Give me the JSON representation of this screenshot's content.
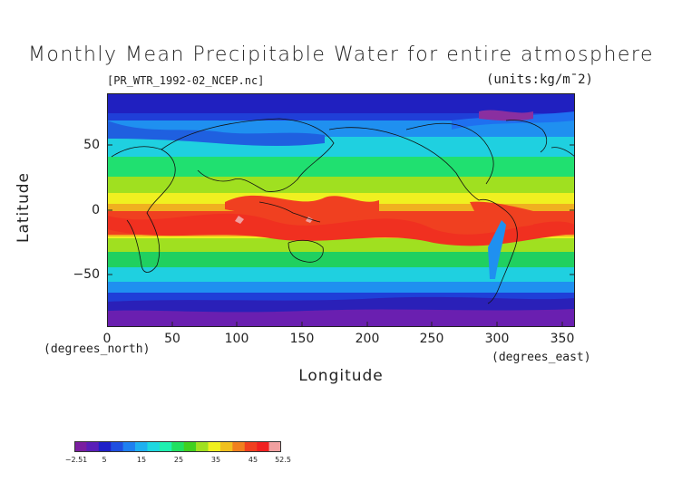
{
  "title": "Monthly Mean Precipitable Water for entire atmosphere",
  "subtitle": "[PR_WTR_1992-02_NCEP.nc]",
  "units": "(units:kg/m¯2)",
  "axes": {
    "ylabel": "Latitude",
    "xlabel": "Longitude",
    "y_ticks": [
      "50",
      "0",
      "−50"
    ],
    "x_ticks": [
      "0",
      "50",
      "100",
      "150",
      "200",
      "250",
      "300",
      "350"
    ],
    "y_unit": "(degrees_north)",
    "x_unit": "(degrees_east)"
  },
  "colorbar": {
    "tick_labels": [
      "−2.51",
      "5",
      "15",
      "25",
      "35",
      "45",
      "52.5"
    ],
    "colors": [
      "#7a1fa0",
      "#5a1fb8",
      "#2020c8",
      "#1f4fe0",
      "#1f80f0",
      "#1fb0f0",
      "#1fd8e0",
      "#1ff0b0",
      "#20e060",
      "#40d020",
      "#a0e020",
      "#f0f020",
      "#f0c020",
      "#f08020",
      "#f04020",
      "#f02020",
      "#f0a0a0"
    ]
  },
  "chart_data": {
    "type": "heatmap",
    "title": "Monthly Mean Precipitable Water for entire atmosphere",
    "xlabel": "Longitude",
    "ylabel": "Latitude",
    "xlim": [
      0,
      360
    ],
    "ylim": [
      -90,
      90
    ],
    "value_range": [
      -2.51,
      52.5
    ]
  }
}
